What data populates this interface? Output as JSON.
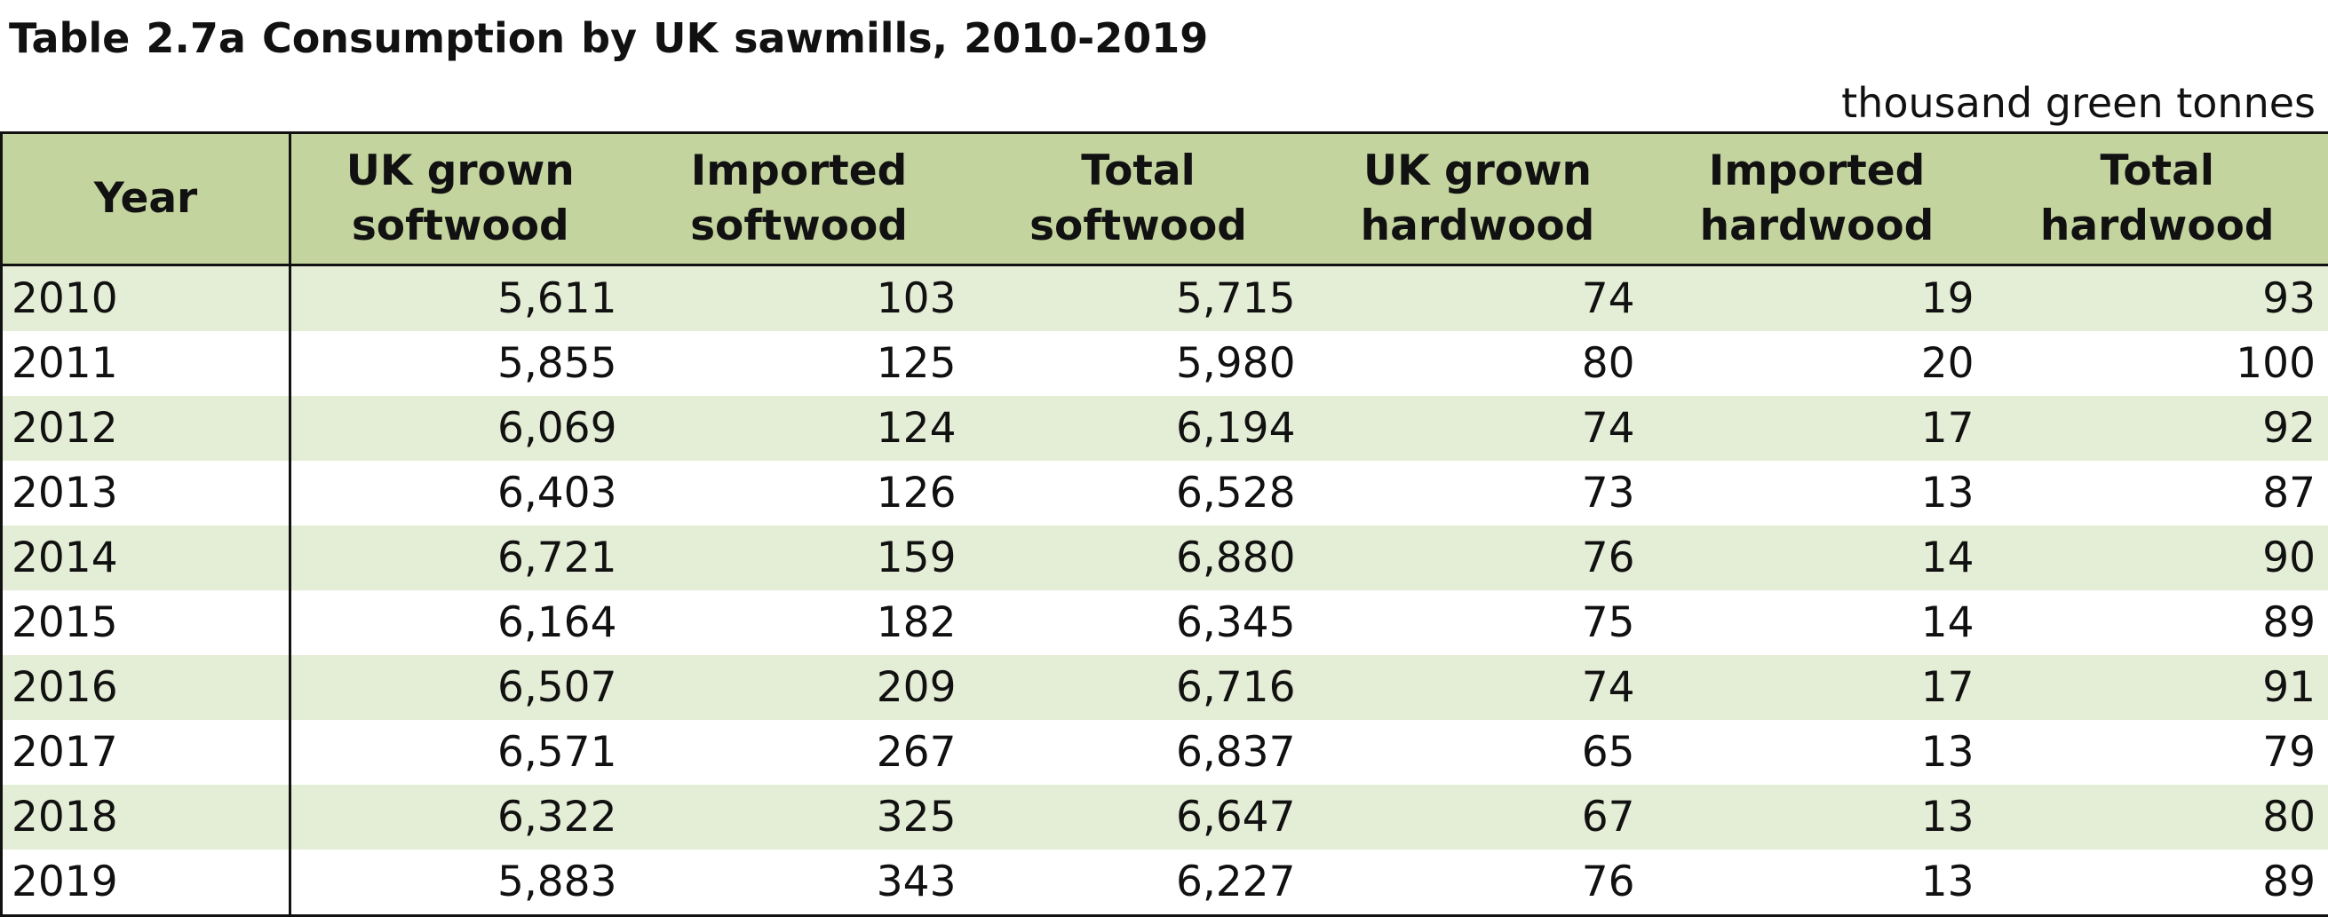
{
  "title": "Table 2.7a  Consumption by UK sawmills, 2010-2019",
  "units": "thousand green tonnes",
  "colors": {
    "header_background": "#c4d49f",
    "banded_row": "#e4edd5",
    "plain_row": "#ffffff",
    "border": "#111111"
  },
  "table": {
    "headers": [
      [
        "Year"
      ],
      [
        "UK grown",
        "softwood"
      ],
      [
        "Imported",
        "softwood"
      ],
      [
        "Total",
        "softwood"
      ],
      [
        "UK grown",
        "hardwood"
      ],
      [
        "Imported",
        "hardwood"
      ],
      [
        "Total",
        "hardwood"
      ]
    ],
    "rows": [
      [
        "2010",
        "5,611",
        "103",
        "5,715",
        "74",
        "19",
        "93"
      ],
      [
        "2011",
        "5,855",
        "125",
        "5,980",
        "80",
        "20",
        "100"
      ],
      [
        "2012",
        "6,069",
        "124",
        "6,194",
        "74",
        "17",
        "92"
      ],
      [
        "2013",
        "6,403",
        "126",
        "6,528",
        "73",
        "13",
        "87"
      ],
      [
        "2014",
        "6,721",
        "159",
        "6,880",
        "76",
        "14",
        "90"
      ],
      [
        "2015",
        "6,164",
        "182",
        "6,345",
        "75",
        "14",
        "89"
      ],
      [
        "2016",
        "6,507",
        "209",
        "6,716",
        "74",
        "17",
        "91"
      ],
      [
        "2017",
        "6,571",
        "267",
        "6,837",
        "65",
        "13",
        "79"
      ],
      [
        "2018",
        "6,322",
        "325",
        "6,647",
        "67",
        "13",
        "80"
      ],
      [
        "2019",
        "5,883",
        "343",
        "6,227",
        "76",
        "13",
        "89"
      ]
    ]
  }
}
